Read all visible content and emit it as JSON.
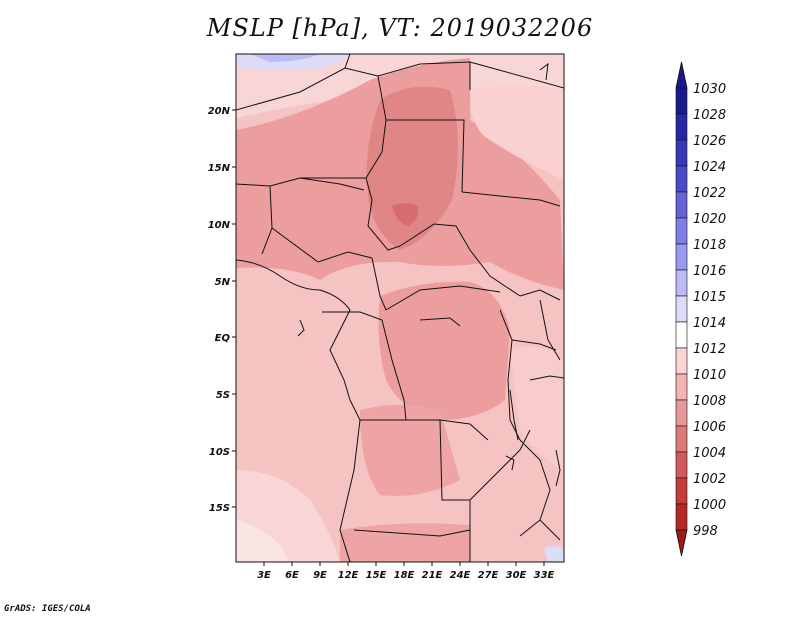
{
  "title": "MSLP [hPa], VT: 2019032206",
  "credit": "GrADS: IGES/COLA",
  "lat_labels": [
    "20N",
    "15N",
    "10N",
    "5N",
    "EQ",
    "5S",
    "10S",
    "15S"
  ],
  "lon_labels": [
    "3E",
    "6E",
    "9E",
    "12E",
    "15E",
    "18E",
    "21E",
    "24E",
    "27E",
    "30E",
    "33E"
  ],
  "colorbar": {
    "labels": [
      "1030",
      "1028",
      "1026",
      "1024",
      "1022",
      "1020",
      "1018",
      "1016",
      "1015",
      "1014",
      "1012",
      "1010",
      "1008",
      "1006",
      "1004",
      "1002",
      "1000",
      "998"
    ],
    "colors": [
      "#1a1a8c",
      "#2828a6",
      "#3838b8",
      "#4a4ac8",
      "#6464d8",
      "#7e7ee6",
      "#9a9aee",
      "#bcbcf4",
      "#dcdcf8",
      "#ffffff",
      "#fbd4d4",
      "#f4b4b4",
      "#e89898",
      "#dc7a7a",
      "#d05a5a",
      "#c43c3c",
      "#b42828",
      "#a01818"
    ]
  }
}
